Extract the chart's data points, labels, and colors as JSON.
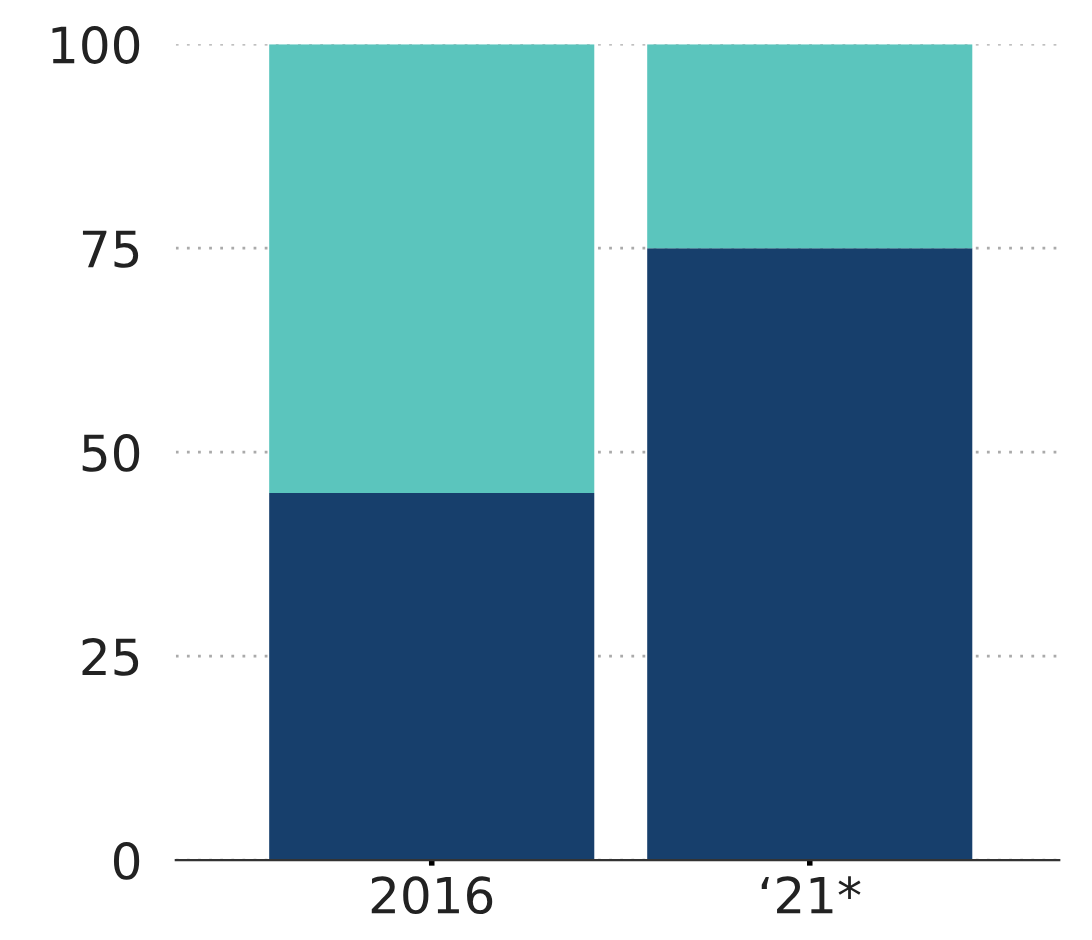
{
  "chart_data": {
    "type": "bar",
    "stacked": true,
    "categories": [
      "2016",
      "‘21*"
    ],
    "series": [
      {
        "color": "#173f6c",
        "values": [
          45,
          75
        ]
      },
      {
        "color": "#5bc5bd",
        "values": [
          55,
          25
        ]
      }
    ],
    "ylim": [
      0,
      100
    ],
    "yticks": [
      0,
      25,
      50,
      75,
      100
    ],
    "grid": "y",
    "legend": false
  }
}
